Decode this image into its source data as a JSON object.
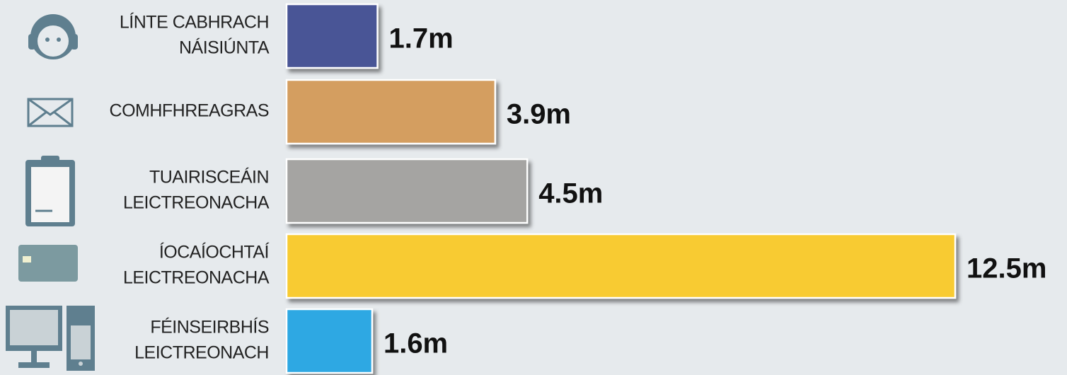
{
  "chart_data": {
    "type": "bar",
    "orientation": "horizontal",
    "categories": [
      [
        "LÍNTE CABHRACH",
        "NÁISIÚNTA"
      ],
      [
        "COMHFHREAGRAS"
      ],
      [
        "TUAIRISCEÁIN",
        "LEICTREONACHA"
      ],
      [
        "ÍOCAÍOCHTAÍ",
        "LEICTREONACHA"
      ],
      [
        "FÉINSEIRBHÍS",
        "LEICTREONACH"
      ]
    ],
    "values": [
      1.7,
      3.9,
      4.5,
      12.5,
      1.6
    ],
    "value_labels": [
      "1.7m",
      "3.9m",
      "4.5m",
      "12.5m",
      "1.6m"
    ],
    "colors": [
      "#4a5596",
      "#d49e60",
      "#a5a4a2",
      "#f8cb30",
      "#2ea8e3"
    ]
  }
}
